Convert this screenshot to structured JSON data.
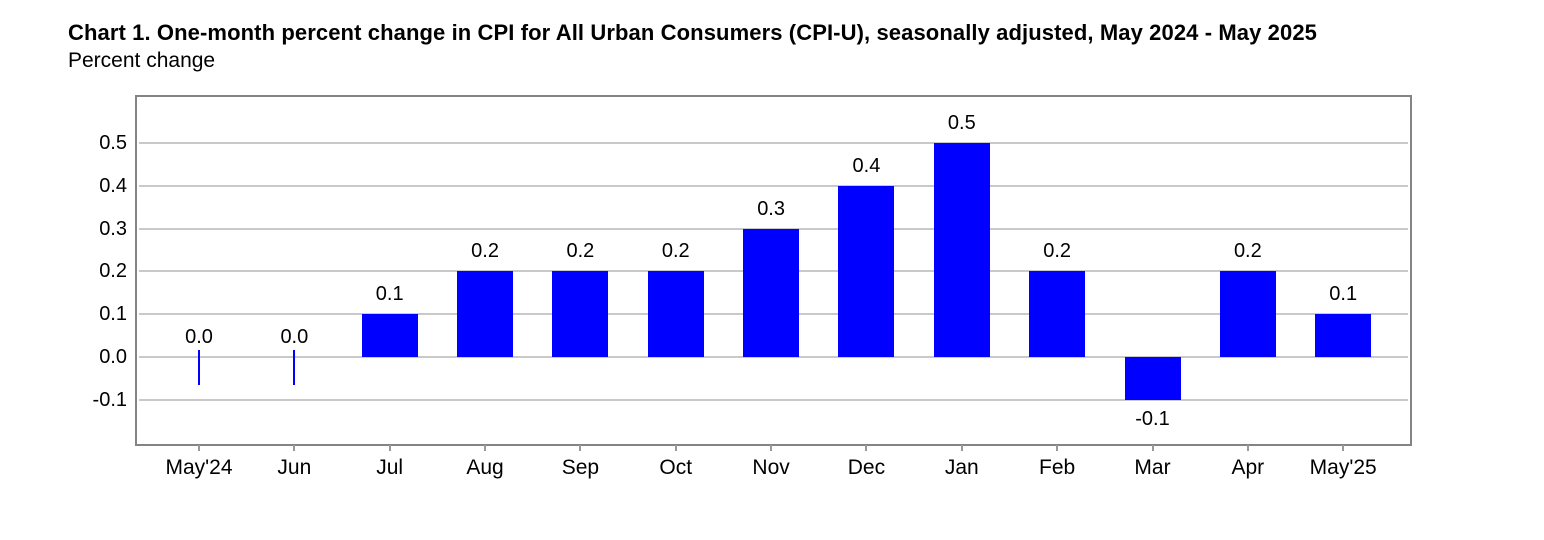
{
  "chart_data": {
    "type": "bar",
    "title": "Chart 1. One-month percent change in CPI for All Urban Consumers (CPI-U), seasonally adjusted, May 2024 - May 2025",
    "subtitle": "Percent change",
    "categories": [
      "May'24",
      "Jun",
      "Jul",
      "Aug",
      "Sep",
      "Oct",
      "Nov",
      "Dec",
      "Jan",
      "Feb",
      "Mar",
      "Apr",
      "May'25"
    ],
    "values": [
      0.0,
      0.0,
      0.1,
      0.2,
      0.2,
      0.2,
      0.3,
      0.4,
      0.5,
      0.2,
      -0.1,
      0.2,
      0.1
    ],
    "value_labels": [
      "0.0",
      "0.0",
      "0.1",
      "0.2",
      "0.2",
      "0.2",
      "0.3",
      "0.4",
      "0.5",
      "0.2",
      "-0.1",
      "0.2",
      "0.1"
    ],
    "xlabel": "",
    "ylabel": "Percent change",
    "y_tick_labels": [
      "0.5",
      "0.4",
      "0.3",
      "0.2",
      "0.1",
      "0.0",
      "-0.1"
    ],
    "y_tick_values": [
      0.5,
      0.4,
      0.3,
      0.2,
      0.1,
      0.0,
      -0.1
    ],
    "ylim": [
      -0.21,
      0.61
    ],
    "grid": "horizontal",
    "legend_position": "none",
    "colors": {
      "bar": "#0000fe",
      "gridline": "#c9c9c9",
      "plot_border": "#848484",
      "axis_tick": "#999999",
      "text": "#000000",
      "background": "#ffffff"
    }
  }
}
